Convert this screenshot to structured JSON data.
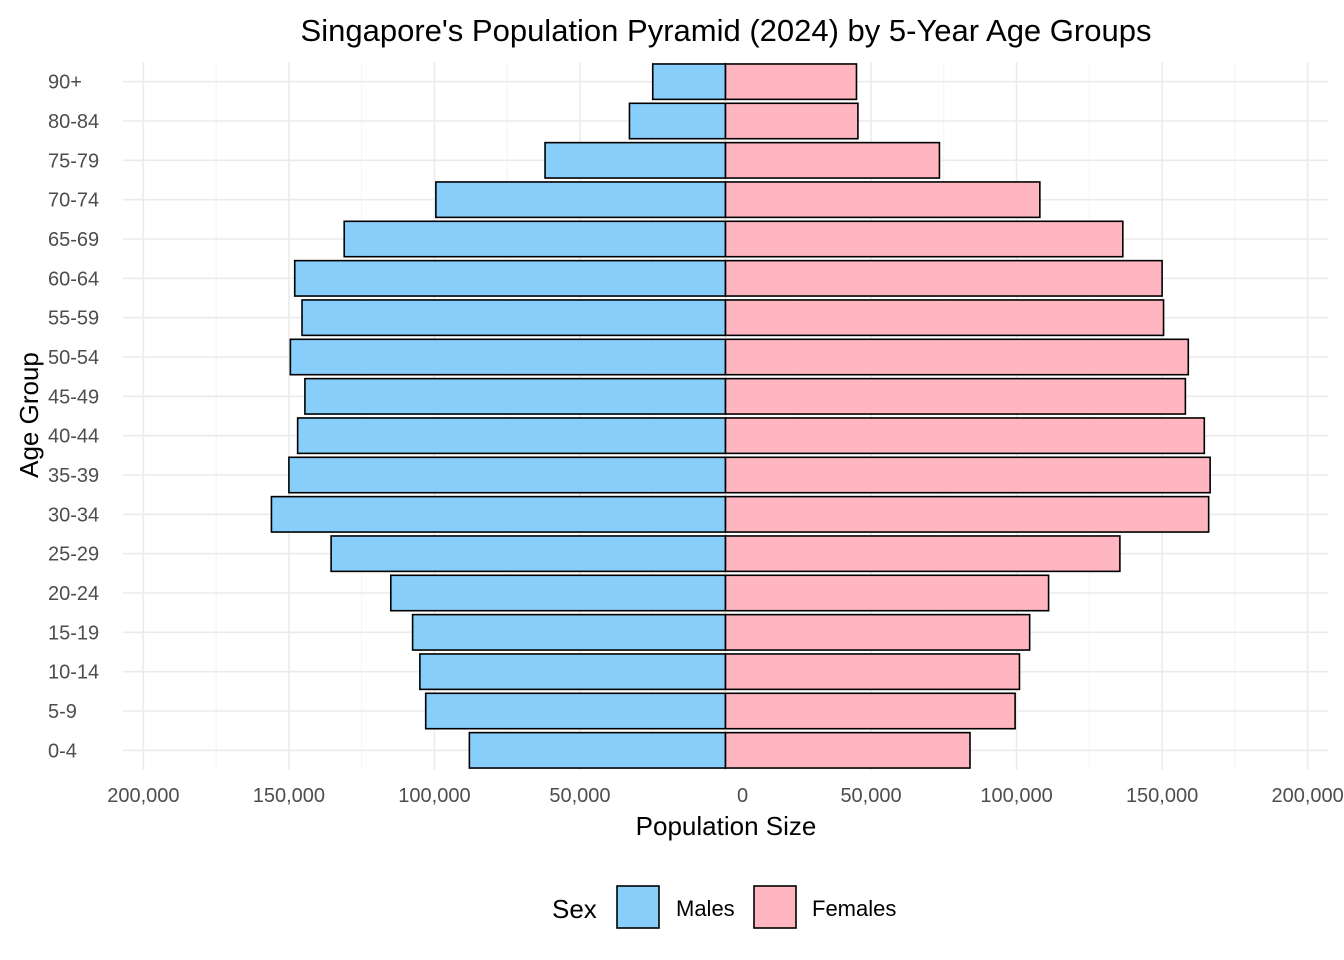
{
  "chart_data": {
    "type": "bar",
    "orientation": "horizontal-pyramid",
    "title": "Singapore's Population Pyramid (2024) by 5-Year Age Groups",
    "xlabel": "Population Size",
    "ylabel": "Age Group",
    "xlim": [
      -207000,
      207000
    ],
    "x_ticks": [
      -200000,
      -150000,
      -100000,
      -50000,
      0,
      50000,
      100000,
      150000,
      200000
    ],
    "x_tick_labels": [
      "200,000",
      "150,000",
      "100,000",
      "50,000",
      "0",
      "50,000",
      "100,000",
      "150,000",
      "200,000"
    ],
    "categories": [
      "0-4",
      "5-9",
      "10-14",
      "15-19",
      "20-24",
      "25-29",
      "30-34",
      "35-39",
      "40-44",
      "45-49",
      "50-54",
      "55-59",
      "60-64",
      "65-69",
      "70-74",
      "75-79",
      "80-84",
      "90+"
    ],
    "series": [
      {
        "name": "Males",
        "color": "#87CEFA",
        "values": [
          88000,
          103000,
          105000,
          107500,
          115000,
          135500,
          156000,
          150000,
          147000,
          144500,
          149500,
          145500,
          148000,
          131000,
          99500,
          62000,
          33000,
          25000
        ]
      },
      {
        "name": "Females",
        "color": "#FFB6C1",
        "values": [
          84000,
          99500,
          101000,
          104500,
          111000,
          135500,
          166000,
          166500,
          164500,
          158000,
          159000,
          150500,
          150000,
          136500,
          108000,
          73500,
          45500,
          45000
        ]
      }
    ],
    "legend": {
      "title": "Sex",
      "position": "bottom",
      "entries": [
        "Males",
        "Females"
      ]
    },
    "grid": true
  }
}
